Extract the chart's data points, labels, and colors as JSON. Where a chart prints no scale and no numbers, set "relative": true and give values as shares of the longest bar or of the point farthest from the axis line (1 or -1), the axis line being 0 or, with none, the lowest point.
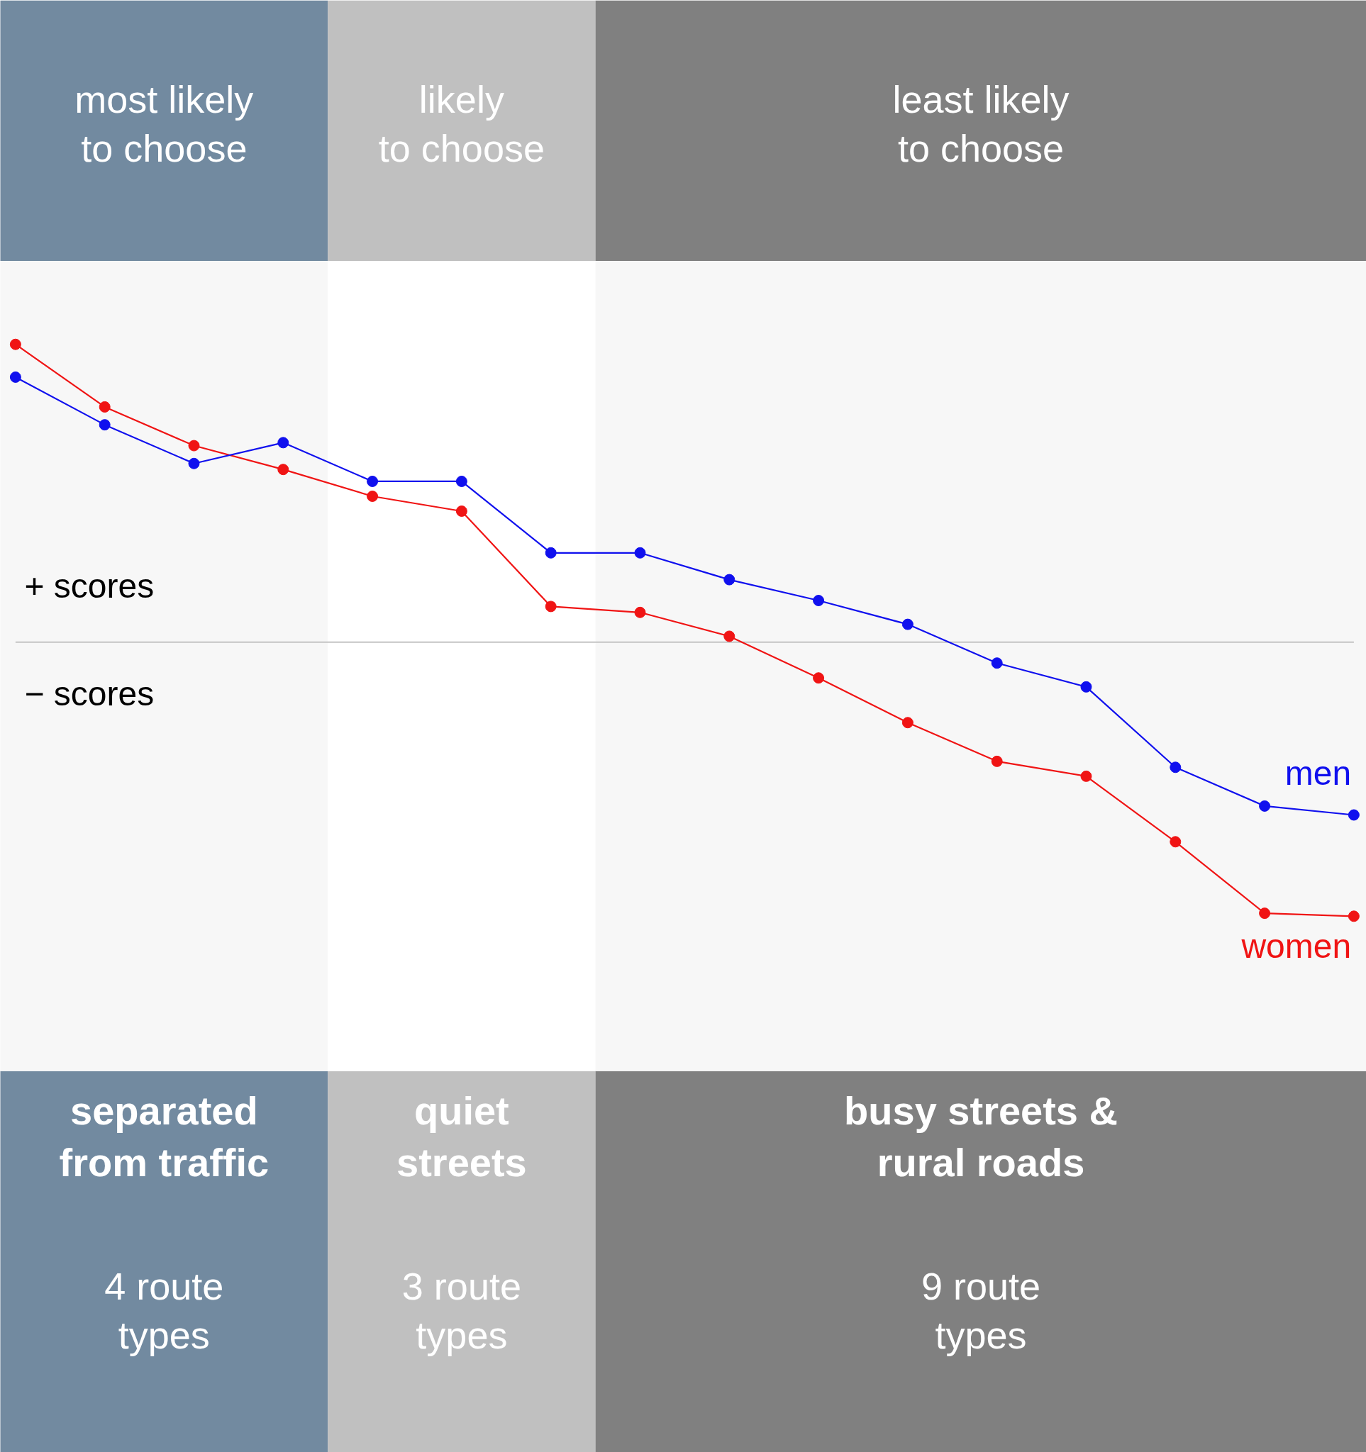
{
  "chart_data": {
    "type": "line",
    "relative": true,
    "marker": "circle",
    "line_style": "solid",
    "categories": [
      null,
      null,
      null,
      null,
      null,
      null,
      null,
      null,
      null,
      null,
      null,
      null,
      null,
      null,
      null,
      null
    ],
    "series": [
      {
        "name": "women",
        "color": "#f01414",
        "values": [
          1,
          0.79,
          0.66,
          0.58,
          0.49,
          0.44,
          0.12,
          0.1,
          0.02,
          -0.12,
          -0.27,
          -0.4,
          -0.45,
          -0.67,
          -0.91,
          -0.92
        ]
      },
      {
        "name": "men",
        "color": "#1010ee",
        "values": [
          0.89,
          0.73,
          0.6,
          0.67,
          0.54,
          0.54,
          0.3,
          0.3,
          0.21,
          0.14,
          0.06,
          -0.07,
          -0.15,
          -0.42,
          -0.55,
          -0.58
        ]
      }
    ],
    "annotations": [
      "+ scores",
      "− scores",
      "most likely\nto choose",
      "likely\nto choose",
      "least likely\nto choose",
      "separated\nfrom traffic",
      "quiet\nstreets",
      "busy streets &\nrural roads",
      "4 route\ntypes",
      "3 route\ntypes",
      "9 route\ntypes"
    ]
  }
}
